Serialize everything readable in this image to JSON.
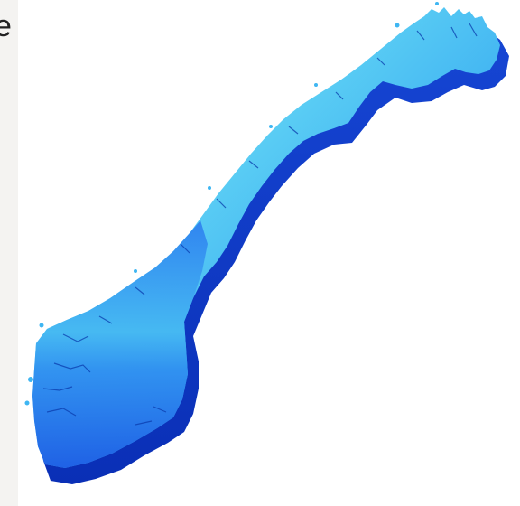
{
  "edge_text": "e",
  "map": {
    "icon": "norway-map-icon",
    "colors": {
      "top_light": "#7fe8f6",
      "top_mid": "#3fb2f2",
      "top_deep": "#1d63e6",
      "side_dark": "#0a2fb6",
      "side_mid": "#1646d4",
      "fjord": "#0a3cae"
    }
  }
}
